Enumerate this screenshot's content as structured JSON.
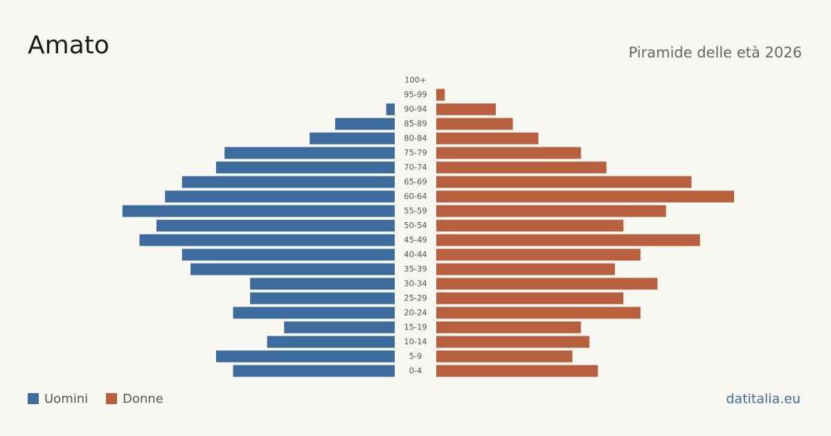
{
  "chart_data": {
    "type": "pyramid",
    "title": "Amato",
    "subtitle": "Piramide delle età 2026",
    "source": "datitalia.eu",
    "categories": [
      "100+",
      "95-99",
      "90-94",
      "85-89",
      "80-84",
      "75-79",
      "70-74",
      "65-69",
      "60-64",
      "55-59",
      "50-54",
      "45-49",
      "40-44",
      "35-39",
      "30-34",
      "25-29",
      "20-24",
      "15-19",
      "10-14",
      "5-9",
      "0-4"
    ],
    "series": [
      {
        "name": "Uomini",
        "color": "#3d6b9e",
        "values": [
          0,
          0,
          1,
          7,
          10,
          20,
          21,
          25,
          27,
          32,
          28,
          30,
          25,
          24,
          17,
          17,
          19,
          13,
          15,
          21,
          19
        ]
      },
      {
        "name": "Donne",
        "color": "#b85f3e",
        "values": [
          0,
          1,
          7,
          9,
          12,
          17,
          20,
          30,
          35,
          27,
          22,
          31,
          24,
          21,
          26,
          22,
          24,
          17,
          18,
          16,
          19
        ]
      }
    ]
  }
}
